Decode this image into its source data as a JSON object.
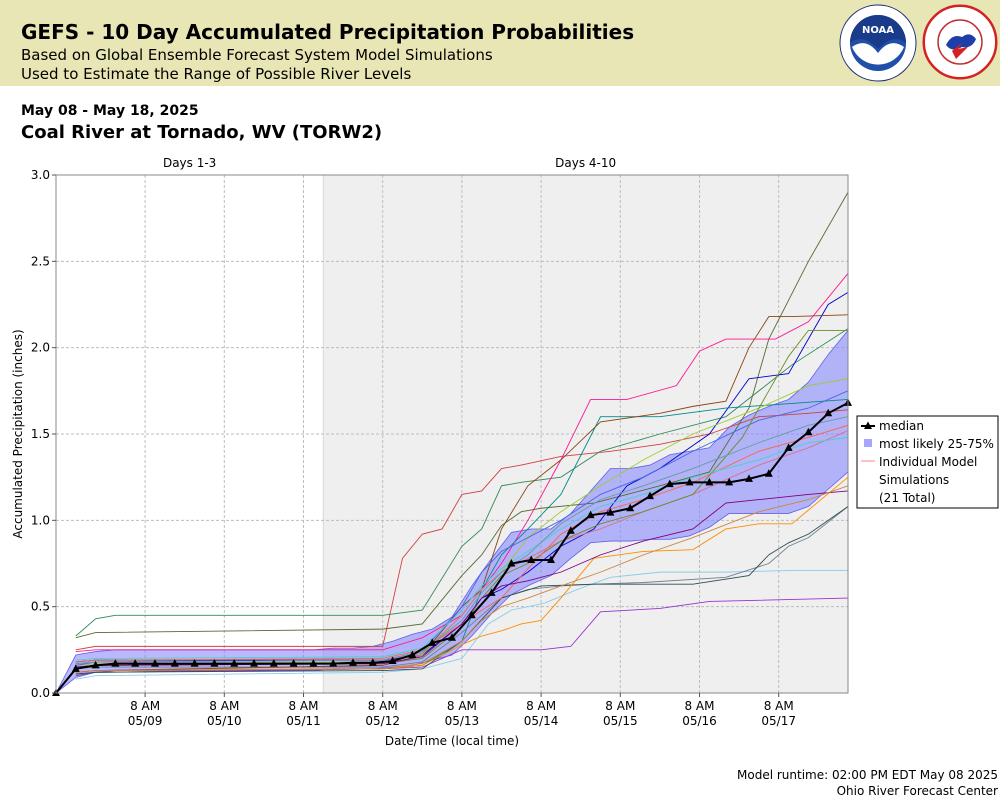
{
  "header": {
    "title": "GEFS - 10 Day Accumulated Precipitation Probabilities",
    "subtitle1": "Based on Global Ensemble Forecast System Model Simulations",
    "subtitle2": "Used to Estimate the Range of Possible River Levels",
    "noaa_logo_text": "NOAA",
    "nws_logo_text": "NATIONAL WEATHER SERVICE"
  },
  "date_range": "May 08 - May 18, 2025",
  "station": "Coal River at Tornado, WV (TORW2)",
  "footer": {
    "runtime": "Model runtime: 02:00 PM EDT May 08 2025",
    "center": "Ohio River Forecast Center"
  },
  "chart_data": {
    "type": "line",
    "xlabel": "Date/Time (local time)",
    "ylabel": "Accumulated Precipitation (inches)",
    "ylim": [
      0,
      3.0
    ],
    "xlim_hours": [
      -3,
      237
    ],
    "x_origin": "05/08 8 AM",
    "x_unit": "hours",
    "yticks": [
      "0.0",
      "0.5",
      "1.0",
      "1.5",
      "2.0",
      "2.5",
      "3.0"
    ],
    "xticks": [
      {
        "h": 24,
        "l1": "8 AM",
        "l2": "05/09"
      },
      {
        "h": 48,
        "l1": "8 AM",
        "l2": "05/10"
      },
      {
        "h": 72,
        "l1": "8 AM",
        "l2": "05/11"
      },
      {
        "h": 96,
        "l1": "8 AM",
        "l2": "05/12"
      },
      {
        "h": 120,
        "l1": "8 AM",
        "l2": "05/13"
      },
      {
        "h": 144,
        "l1": "8 AM",
        "l2": "05/14"
      },
      {
        "h": 168,
        "l1": "8 AM",
        "l2": "05/15"
      },
      {
        "h": 192,
        "l1": "8 AM",
        "l2": "05/16"
      },
      {
        "h": 216,
        "l1": "8 AM",
        "l2": "05/17"
      }
    ],
    "periods": [
      {
        "label": "Days 1-3",
        "start": -3,
        "end": 78,
        "shaded": false
      },
      {
        "label": "Days 4-10",
        "start": 78,
        "end": 237,
        "shaded": true
      }
    ],
    "grid": true,
    "legend_position": "right",
    "legend": [
      {
        "label": "median"
      },
      {
        "label": "most likely 25-75%"
      },
      {
        "label": "Individual Model",
        "label2": "Simulations",
        "label3": "(21 Total)"
      }
    ],
    "colors": {
      "median": "#000000",
      "band_fill": "#8080ff",
      "band_edge": "#6060e8",
      "day4_shade": "#efefef"
    },
    "median": {
      "x": [
        -3,
        3,
        9,
        15,
        21,
        27,
        33,
        39,
        45,
        51,
        57,
        63,
        69,
        75,
        81,
        87,
        93,
        99,
        105,
        111,
        117,
        123,
        129,
        135,
        141,
        147,
        153,
        159,
        165,
        171,
        177,
        183,
        189,
        195,
        201,
        207,
        213,
        219,
        225,
        231,
        237
      ],
      "y": [
        0.0,
        0.14,
        0.16,
        0.17,
        0.17,
        0.17,
        0.17,
        0.17,
        0.17,
        0.17,
        0.17,
        0.17,
        0.17,
        0.17,
        0.17,
        0.175,
        0.175,
        0.185,
        0.22,
        0.29,
        0.32,
        0.45,
        0.58,
        0.75,
        0.77,
        0.77,
        0.94,
        1.03,
        1.045,
        1.07,
        1.14,
        1.21,
        1.22,
        1.22,
        1.22,
        1.24,
        1.27,
        1.42,
        1.51,
        1.62,
        1.68
      ]
    },
    "band": {
      "x": [
        -3,
        3,
        9,
        15,
        27,
        39,
        51,
        63,
        75,
        81,
        87,
        93,
        99,
        105,
        111,
        117,
        123,
        129,
        135,
        141,
        147,
        153,
        159,
        165,
        171,
        177,
        183,
        189,
        195,
        201,
        207,
        213,
        219,
        225,
        231,
        237
      ],
      "lower": [
        0.0,
        0.09,
        0.12,
        0.13,
        0.13,
        0.13,
        0.13,
        0.13,
        0.13,
        0.14,
        0.14,
        0.14,
        0.15,
        0.16,
        0.19,
        0.22,
        0.33,
        0.46,
        0.57,
        0.63,
        0.68,
        0.78,
        0.87,
        0.88,
        0.88,
        0.89,
        0.89,
        0.91,
        0.96,
        1.04,
        1.04,
        1.04,
        1.04,
        1.08,
        1.18,
        1.28
      ],
      "upper": [
        0.0,
        0.22,
        0.24,
        0.25,
        0.25,
        0.25,
        0.25,
        0.25,
        0.25,
        0.26,
        0.26,
        0.27,
        0.3,
        0.34,
        0.37,
        0.44,
        0.62,
        0.78,
        0.93,
        0.95,
        0.95,
        1.04,
        1.17,
        1.3,
        1.3,
        1.32,
        1.38,
        1.4,
        1.42,
        1.54,
        1.61,
        1.66,
        1.7,
        1.8,
        1.96,
        2.1
      ]
    },
    "simulations": [
      {
        "color": "#d04040",
        "x": [
          3,
          9,
          96,
          102,
          108,
          114,
          120,
          126,
          132,
          138,
          150,
          165,
          180,
          195,
          210,
          225,
          237
        ],
        "y": [
          0.25,
          0.27,
          0.27,
          0.78,
          0.92,
          0.95,
          1.15,
          1.17,
          1.3,
          1.32,
          1.37,
          1.4,
          1.44,
          1.5,
          1.6,
          1.62,
          1.64
        ]
      },
      {
        "color": "#2e8b57",
        "x": [
          3,
          9,
          15,
          96,
          108,
          120,
          126,
          132,
          138,
          150,
          162,
          180,
          200,
          220,
          237
        ],
        "y": [
          0.33,
          0.43,
          0.45,
          0.45,
          0.48,
          0.85,
          0.95,
          1.2,
          1.22,
          1.25,
          1.4,
          1.5,
          1.6,
          1.9,
          2.11
        ]
      },
      {
        "color": "#556b2f",
        "x": [
          3,
          9,
          96,
          108,
          120,
          126,
          132,
          138,
          144,
          160,
          170,
          180,
          195,
          207,
          213,
          225,
          237
        ],
        "y": [
          0.32,
          0.35,
          0.37,
          0.4,
          0.68,
          0.8,
          0.97,
          1.05,
          1.07,
          1.1,
          1.15,
          1.2,
          1.28,
          1.65,
          2.05,
          2.5,
          2.9
        ]
      },
      {
        "color": "#ff1493",
        "x": [
          3,
          9,
          96,
          108,
          120,
          126,
          132,
          140,
          150,
          159,
          170,
          185,
          192,
          200,
          215,
          225,
          237
        ],
        "y": [
          0.24,
          0.25,
          0.25,
          0.32,
          0.45,
          0.6,
          0.75,
          1.0,
          1.35,
          1.7,
          1.7,
          1.78,
          1.98,
          2.05,
          2.05,
          2.15,
          2.43
        ]
      },
      {
        "color": "#0000cd",
        "x": [
          3,
          9,
          96,
          108,
          120,
          126,
          132,
          140,
          150,
          160,
          170,
          180,
          195,
          207,
          219,
          225,
          231,
          237
        ],
        "y": [
          0.18,
          0.19,
          0.19,
          0.22,
          0.4,
          0.55,
          0.6,
          0.7,
          0.85,
          0.95,
          1.2,
          1.3,
          1.5,
          1.82,
          1.85,
          2.05,
          2.25,
          2.32
        ]
      },
      {
        "color": "#008b8b",
        "x": [
          3,
          9,
          96,
          108,
          120,
          126,
          132,
          140,
          150,
          162,
          180,
          200,
          237
        ],
        "y": [
          0.1,
          0.12,
          0.14,
          0.16,
          0.3,
          0.6,
          0.8,
          0.95,
          1.15,
          1.6,
          1.6,
          1.65,
          1.7
        ]
      },
      {
        "color": "#87ceeb",
        "x": [
          3,
          9,
          96,
          108,
          120,
          128,
          135,
          145,
          155,
          165,
          180,
          200,
          220,
          237
        ],
        "y": [
          0.08,
          0.1,
          0.12,
          0.14,
          0.2,
          0.4,
          0.48,
          0.52,
          0.6,
          0.67,
          0.7,
          0.7,
          0.71,
          0.71
        ]
      },
      {
        "color": "#9932cc",
        "x": [
          3,
          9,
          96,
          108,
          120,
          130,
          144,
          153,
          162,
          180,
          195,
          237
        ],
        "y": [
          0.1,
          0.12,
          0.14,
          0.15,
          0.25,
          0.25,
          0.25,
          0.27,
          0.47,
          0.49,
          0.53,
          0.55
        ]
      },
      {
        "color": "#708090",
        "x": [
          3,
          9,
          96,
          108,
          120,
          126,
          132,
          140,
          150,
          160,
          175,
          200,
          213,
          219,
          225,
          237
        ],
        "y": [
          0.14,
          0.15,
          0.15,
          0.18,
          0.35,
          0.45,
          0.55,
          0.6,
          0.62,
          0.63,
          0.64,
          0.67,
          0.75,
          0.85,
          0.9,
          1.08
        ]
      },
      {
        "color": "#2f4f4f",
        "x": [
          3,
          9,
          96,
          108,
          120,
          132,
          144,
          160,
          175,
          190,
          207,
          213,
          219,
          225,
          237
        ],
        "y": [
          0.11,
          0.12,
          0.13,
          0.14,
          0.3,
          0.55,
          0.62,
          0.63,
          0.63,
          0.63,
          0.68,
          0.8,
          0.87,
          0.92,
          1.08
        ]
      },
      {
        "color": "#ff8c00",
        "x": [
          3,
          9,
          96,
          108,
          120,
          126,
          132,
          138,
          144,
          150,
          160,
          175,
          190,
          200,
          210,
          220,
          237
        ],
        "y": [
          0.12,
          0.13,
          0.14,
          0.16,
          0.28,
          0.33,
          0.36,
          0.4,
          0.42,
          0.55,
          0.78,
          0.82,
          0.83,
          0.95,
          0.98,
          0.98,
          1.25
        ]
      },
      {
        "color": "#8b4513",
        "x": [
          3,
          9,
          96,
          108,
          120,
          126,
          132,
          140,
          150,
          162,
          180,
          190,
          200,
          207,
          213,
          220,
          237
        ],
        "y": [
          0.12,
          0.13,
          0.16,
          0.22,
          0.5,
          0.6,
          0.95,
          1.2,
          1.35,
          1.57,
          1.62,
          1.66,
          1.69,
          2.0,
          2.18,
          2.18,
          2.19
        ]
      },
      {
        "color": "#9acd32",
        "x": [
          3,
          9,
          96,
          108,
          120,
          126,
          132,
          140,
          150,
          162,
          175,
          190,
          210,
          225,
          237
        ],
        "y": [
          0.16,
          0.17,
          0.18,
          0.22,
          0.45,
          0.6,
          0.7,
          0.9,
          1.05,
          1.2,
          1.35,
          1.5,
          1.65,
          1.78,
          1.82
        ]
      },
      {
        "color": "#4169e1",
        "x": [
          3,
          9,
          96,
          108,
          120,
          126,
          132,
          140,
          150,
          162,
          175,
          190,
          210,
          225,
          237
        ],
        "y": [
          0.16,
          0.18,
          0.19,
          0.24,
          0.5,
          0.7,
          0.82,
          0.9,
          1.0,
          1.15,
          1.25,
          1.4,
          1.58,
          1.65,
          1.75
        ]
      },
      {
        "color": "#db7093",
        "x": [
          3,
          9,
          96,
          108,
          120,
          126,
          132,
          140,
          150,
          162,
          175,
          190,
          210,
          225,
          237
        ],
        "y": [
          0.17,
          0.18,
          0.19,
          0.23,
          0.45,
          0.6,
          0.7,
          0.78,
          0.88,
          0.95,
          1.05,
          1.15,
          1.32,
          1.42,
          1.52
        ]
      },
      {
        "color": "#6b8e23",
        "x": [
          3,
          9,
          96,
          108,
          120,
          126,
          132,
          140,
          150,
          162,
          175,
          190,
          205,
          213,
          219,
          225,
          237
        ],
        "y": [
          0.15,
          0.16,
          0.17,
          0.2,
          0.38,
          0.55,
          0.68,
          0.75,
          0.88,
          0.98,
          1.05,
          1.15,
          1.48,
          1.75,
          1.95,
          2.1,
          2.1
        ]
      },
      {
        "color": "#ff6347",
        "x": [
          3,
          9,
          96,
          108,
          120,
          126,
          132,
          140,
          150,
          162,
          175,
          190,
          210,
          225,
          237
        ],
        "y": [
          0.18,
          0.19,
          0.2,
          0.25,
          0.4,
          0.48,
          0.55,
          0.72,
          0.92,
          1.05,
          1.12,
          1.22,
          1.4,
          1.48,
          1.55
        ]
      },
      {
        "color": "#48d1cc",
        "x": [
          3,
          9,
          96,
          108,
          120,
          126,
          132,
          140,
          150,
          162,
          175,
          190,
          210,
          225,
          237
        ],
        "y": [
          0.19,
          0.2,
          0.21,
          0.26,
          0.48,
          0.62,
          0.72,
          0.82,
          0.95,
          1.08,
          1.15,
          1.25,
          1.35,
          1.45,
          1.48
        ]
      },
      {
        "color": "#800080",
        "x": [
          3,
          9,
          96,
          108,
          120,
          126,
          132,
          140,
          150,
          162,
          175,
          190,
          200,
          210,
          225,
          237
        ],
        "y": [
          0.15,
          0.16,
          0.17,
          0.21,
          0.4,
          0.55,
          0.62,
          0.65,
          0.7,
          0.8,
          0.88,
          0.95,
          1.1,
          1.12,
          1.15,
          1.17
        ]
      },
      {
        "color": "#cd853f",
        "x": [
          3,
          9,
          96,
          108,
          120,
          126,
          132,
          140,
          150,
          162,
          175,
          190,
          210,
          225,
          237
        ],
        "y": [
          0.12,
          0.13,
          0.14,
          0.17,
          0.3,
          0.42,
          0.5,
          0.55,
          0.62,
          0.7,
          0.8,
          0.9,
          1.05,
          1.12,
          1.2
        ]
      },
      {
        "color": "#5f9ea0",
        "x": [
          3,
          9,
          96,
          108,
          120,
          126,
          132,
          140,
          150,
          162,
          175,
          190,
          210,
          225,
          237
        ],
        "y": [
          0.17,
          0.18,
          0.19,
          0.24,
          0.42,
          0.58,
          0.7,
          0.8,
          0.98,
          1.12,
          1.2,
          1.3,
          1.45,
          1.55,
          1.6
        ]
      }
    ]
  }
}
